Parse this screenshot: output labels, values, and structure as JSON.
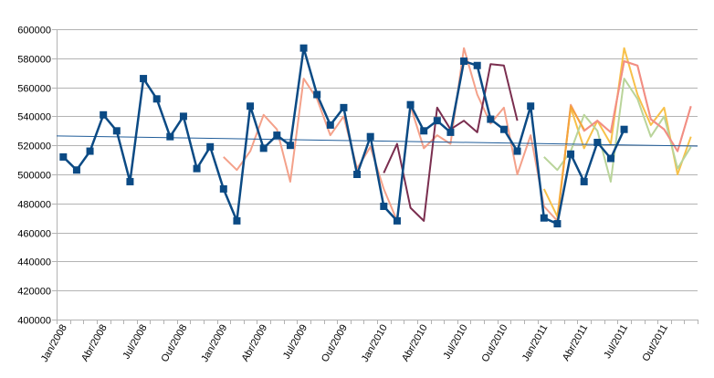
{
  "chart_data": {
    "type": "line",
    "title": "",
    "xlabel": "",
    "ylabel": "",
    "ylim": [
      400000,
      600000
    ],
    "y_ticks": [
      400000,
      420000,
      440000,
      460000,
      480000,
      500000,
      520000,
      540000,
      560000,
      580000,
      600000
    ],
    "y_tick_labels": [
      "400000",
      "420000",
      "440000",
      "460000",
      "480000",
      "500000",
      "520000",
      "540000",
      "560000",
      "580000",
      "600000"
    ],
    "x_tick_labels": [
      "Jan/2008",
      "Abr/2008",
      "Jul/2008",
      "Out/2008",
      "Jan/2009",
      "Abr/2009",
      "Jul/2009",
      "Out/2009",
      "Jan/2010",
      "Abr/2010",
      "Jul/2010",
      "Out/2010",
      "Jan/2011",
      "Abr/2011",
      "Jul/2011",
      "Out/2011"
    ],
    "grid": "horizontal",
    "legend": "none",
    "months_count": 48,
    "series": [
      {
        "color": "#0b4a84",
        "marker": "square",
        "start_index": 0,
        "values": [
          512000,
          503000,
          516000,
          541000,
          530000,
          495000,
          566000,
          552000,
          526000,
          540000,
          504000,
          519000,
          490000,
          468000,
          547000,
          518000,
          527000,
          520000,
          587000,
          555000,
          534000,
          546000,
          500000,
          526000,
          478000,
          468000,
          548000,
          530000,
          537000,
          529000,
          578000,
          575000,
          538000,
          531000,
          516000,
          547000,
          470000,
          466000,
          514000,
          495000,
          522000,
          511000,
          531000
        ]
      },
      {
        "color": "#f4a18a",
        "marker": "none",
        "start_index": 12,
        "values": [
          512000,
          503000,
          516000,
          541000,
          531000,
          495000,
          566000,
          552000,
          527000,
          540000,
          504000,
          519000,
          490000,
          468000,
          547000,
          518000,
          527000,
          521000,
          587000,
          555000,
          535000,
          546000,
          500000,
          527000,
          478000,
          468000,
          548000,
          530000,
          537000,
          529000,
          578000,
          575000,
          538000,
          531000,
          516000,
          547000
        ]
      },
      {
        "color": "#7a2e4f",
        "marker": "none",
        "start_index": 24,
        "values": [
          501000,
          521000,
          477000,
          468000,
          546000,
          531000,
          537000,
          529000,
          576000,
          575000,
          537000
        ]
      },
      {
        "color": "#f7c14a",
        "marker": "none",
        "start_index": 36,
        "values": [
          490000,
          471000,
          546000,
          518000,
          537000,
          521000,
          587000,
          555000,
          534000,
          546000,
          500000,
          526000
        ]
      },
      {
        "color": "#b9d49a",
        "marker": "none",
        "start_index": 36,
        "values": [
          512000,
          503000,
          516000,
          541000,
          530000,
          495000,
          566000,
          552000,
          526000,
          540000,
          504000,
          519000
        ]
      },
      {
        "color": "#f4a33c",
        "marker": "none",
        "start_index": 37,
        "values": [
          468000,
          547000,
          531000
        ]
      },
      {
        "color": "#f28e84",
        "marker": "none",
        "start_index": 39,
        "values": [
          530000,
          537000,
          529000,
          578000,
          575000,
          538000,
          531000,
          516000,
          547000
        ]
      },
      {
        "color": "#1f5c99",
        "marker": "none",
        "start_index": 0,
        "values": [
          526500,
          519500
        ],
        "trendline": true
      }
    ]
  }
}
